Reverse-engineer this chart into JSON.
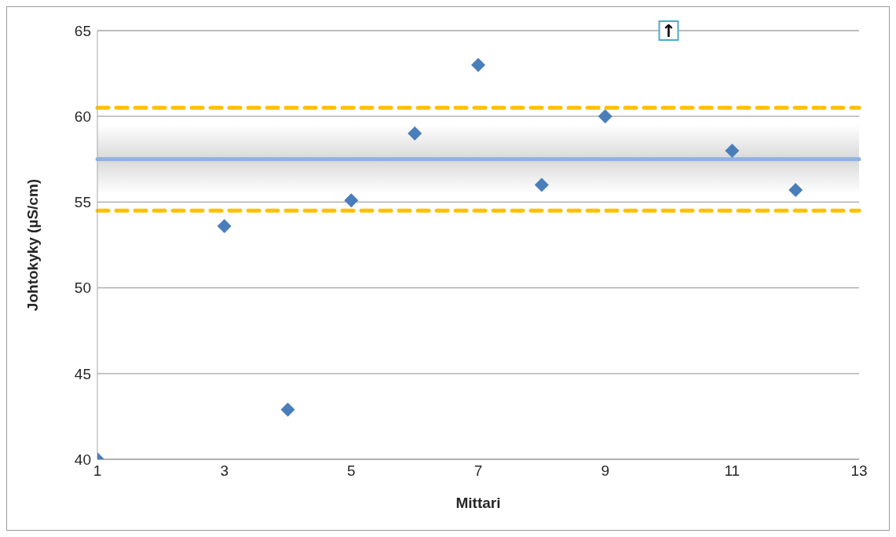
{
  "chart_data": {
    "type": "scatter",
    "xlabel": "Mittari",
    "ylabel": "Johtokyky (µS/cm)",
    "x": [
      1,
      3,
      4,
      5,
      6,
      7,
      8,
      9,
      11,
      12
    ],
    "values": [
      40,
      53.6,
      42.9,
      55.1,
      59.0,
      63.0,
      56.0,
      60.0,
      58.0,
      55.7
    ],
    "color": "#4a7ebb",
    "marker": "diamond",
    "xlim": [
      1,
      13
    ],
    "xticks": [
      1,
      3,
      5,
      7,
      9,
      11,
      13
    ],
    "ylim": [
      40,
      65
    ],
    "yticks": [
      40,
      45,
      50,
      55,
      60,
      65
    ],
    "grid": "y",
    "ref_lines": [
      {
        "axis": "y",
        "value": 57.5,
        "color": "#8db3e2",
        "line_style": "solid"
      },
      {
        "axis": "y",
        "value": 60.5,
        "color": "#ffc000",
        "line_style": "dashed"
      },
      {
        "axis": "y",
        "value": 54.5,
        "color": "#ffc000",
        "line_style": "dashed"
      }
    ],
    "bands": [
      {
        "axis": "y",
        "from": 55.5,
        "to": 59.5,
        "color": "#d9d9d9"
      }
    ],
    "annotations": [
      {
        "text": "↑",
        "x": 10,
        "y": 65
      }
    ]
  }
}
